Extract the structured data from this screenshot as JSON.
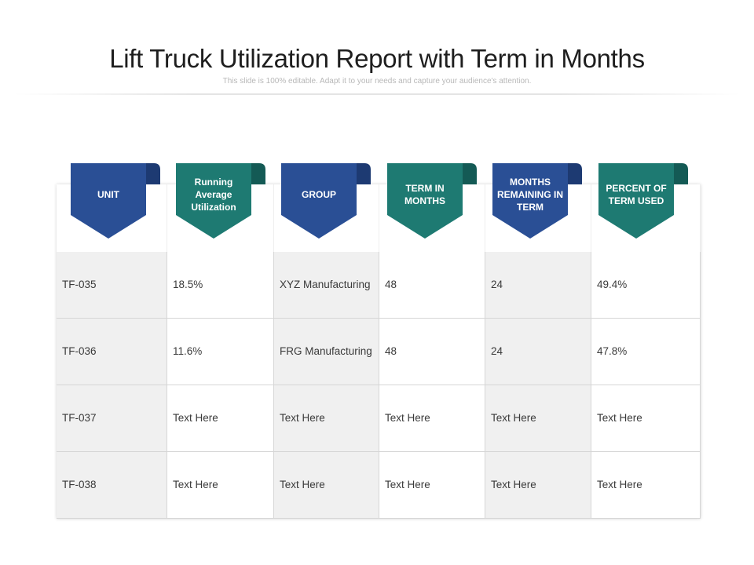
{
  "title": "Lift Truck Utilization Report with Term in Months",
  "subtitle": "This slide is 100% editable. Adapt it to your needs and capture your audience's attention.",
  "colors": {
    "blue": "#2a4f95",
    "blue_fold": "#1d3a72",
    "teal": "#1e7a72",
    "teal_fold": "#145a55"
  },
  "headers": [
    {
      "label": "UNIT",
      "color": "blue"
    },
    {
      "label": "Running Average Utilization",
      "color": "teal"
    },
    {
      "label": "GROUP",
      "color": "blue"
    },
    {
      "label": "TERM IN MONTHS",
      "color": "teal"
    },
    {
      "label": "MONTHS REMAINING IN TERM",
      "color": "blue"
    },
    {
      "label": "PERCENT OF TERM USED",
      "color": "teal"
    }
  ],
  "rows": [
    [
      "TF-035",
      "18.5%",
      "XYZ Manufacturing",
      "48",
      "24",
      "49.4%"
    ],
    [
      "TF-036",
      "11.6%",
      "FRG Manufacturing",
      "48",
      "24",
      "47.8%"
    ],
    [
      "TF-037",
      "Text Here",
      "Text Here",
      "Text Here",
      "Text Here",
      "Text Here"
    ],
    [
      "TF-038",
      "Text Here",
      "Text Here",
      "Text Here",
      "Text Here",
      "Text Here"
    ]
  ]
}
